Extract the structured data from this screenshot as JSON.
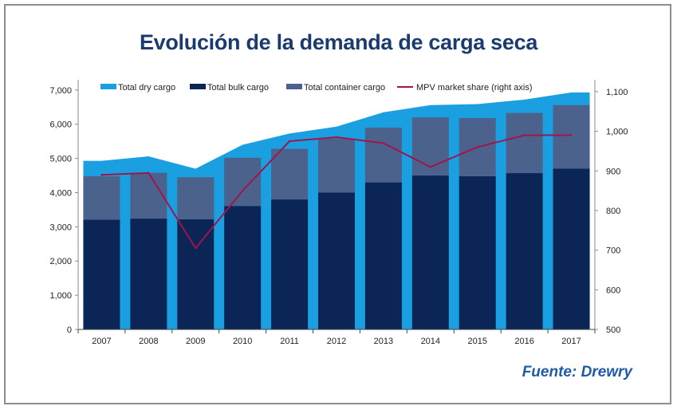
{
  "title": "Evolución de la demanda de carga seca",
  "source": "Fuente: Drewry",
  "chart_data": {
    "type": "bar",
    "categories": [
      "2007",
      "2008",
      "2009",
      "2010",
      "2011",
      "2012",
      "2013",
      "2014",
      "2015",
      "2016",
      "2017"
    ],
    "series": [
      {
        "name": "Total dry cargo",
        "kind": "area",
        "color": "#1aa0e0",
        "values": [
          4930,
          5060,
          4700,
          5400,
          5730,
          5930,
          6350,
          6560,
          6590,
          6720,
          6930
        ]
      },
      {
        "name": "Total bulk cargo",
        "kind": "bar",
        "color": "#0b2556",
        "values": [
          3210,
          3240,
          3220,
          3610,
          3800,
          4000,
          4300,
          4500,
          4480,
          4570,
          4700
        ]
      },
      {
        "name": "Total container cargo",
        "kind": "bar-stack",
        "color": "#4b628c",
        "values": [
          1270,
          1340,
          1230,
          1410,
          1480,
          1580,
          1600,
          1700,
          1700,
          1760,
          1860
        ]
      },
      {
        "name": "MPV market share (right axis)",
        "kind": "line",
        "axis": "right",
        "color": "#a0154b",
        "values": [
          890,
          895,
          705,
          850,
          975,
          985,
          970,
          910,
          960,
          990,
          990
        ]
      }
    ],
    "yticks_left": [
      "0",
      "1,000",
      "2,000",
      "3,000",
      "4,000",
      "5,000",
      "6,000",
      "7,000"
    ],
    "yticks_right": [
      "500",
      "600",
      "700",
      "800",
      "900",
      "1,000",
      "1,100"
    ],
    "ylim_left": [
      0,
      7300
    ],
    "ylim_right": [
      500,
      1130
    ],
    "legend": [
      "Total dry cargo",
      "Total bulk cargo",
      "Total container cargo",
      "MPV market share (right axis)"
    ],
    "legend_position": "top"
  }
}
